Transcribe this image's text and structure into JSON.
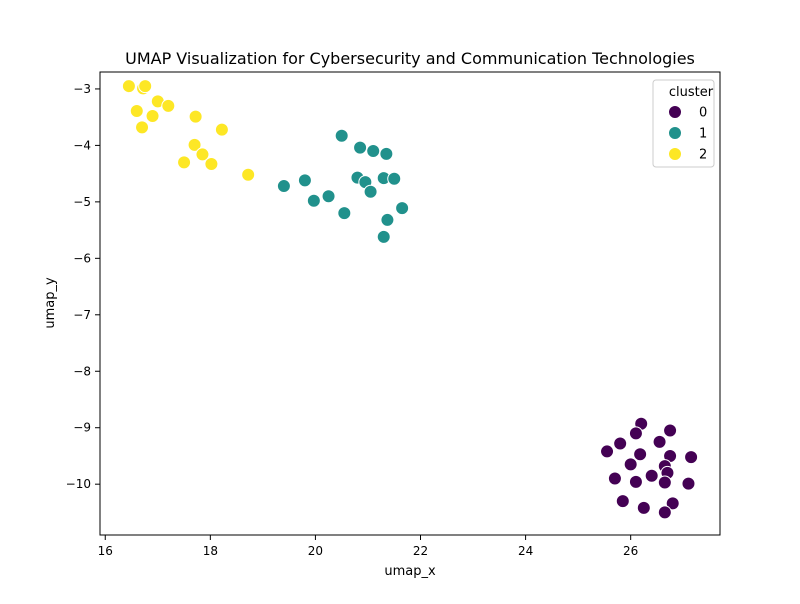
{
  "chart_data": {
    "type": "scatter",
    "title": "UMAP Visualization for Cybersecurity and Communication Technologies",
    "xlabel": "umap_x",
    "ylabel": "umap_y",
    "xlim": [
      15.9,
      27.7
    ],
    "ylim": [
      -10.9,
      -2.7
    ],
    "xticks": [
      16,
      18,
      20,
      22,
      24,
      26
    ],
    "yticks": [
      -3,
      -4,
      -5,
      -6,
      -7,
      -8,
      -9,
      -10
    ],
    "grid": false,
    "legend": {
      "title": "cluster",
      "placement": "top-right",
      "entries": [
        "0",
        "1",
        "2"
      ]
    },
    "series": [
      {
        "name": "0",
        "color": "#440154",
        "points": [
          [
            26.2,
            -8.93
          ],
          [
            26.75,
            -9.05
          ],
          [
            26.1,
            -9.1
          ],
          [
            25.8,
            -9.28
          ],
          [
            26.55,
            -9.25
          ],
          [
            25.55,
            -9.42
          ],
          [
            26.18,
            -9.47
          ],
          [
            26.75,
            -9.5
          ],
          [
            27.15,
            -9.52
          ],
          [
            26.0,
            -9.65
          ],
          [
            26.65,
            -9.68
          ],
          [
            26.7,
            -9.8
          ],
          [
            25.7,
            -9.9
          ],
          [
            26.4,
            -9.85
          ],
          [
            26.1,
            -9.96
          ],
          [
            26.65,
            -9.97
          ],
          [
            27.1,
            -9.99
          ],
          [
            25.85,
            -10.3
          ],
          [
            26.8,
            -10.34
          ],
          [
            26.25,
            -10.42
          ],
          [
            26.65,
            -10.5
          ]
        ]
      },
      {
        "name": "1",
        "color": "#21918c",
        "points": [
          [
            20.5,
            -3.83
          ],
          [
            20.85,
            -4.04
          ],
          [
            21.1,
            -4.1
          ],
          [
            21.35,
            -4.15
          ],
          [
            20.8,
            -4.57
          ],
          [
            20.95,
            -4.65
          ],
          [
            21.3,
            -4.58
          ],
          [
            21.5,
            -4.59
          ],
          [
            19.4,
            -4.72
          ],
          [
            19.8,
            -4.62
          ],
          [
            21.05,
            -4.82
          ],
          [
            20.25,
            -4.9
          ],
          [
            19.97,
            -4.98
          ],
          [
            21.65,
            -5.11
          ],
          [
            20.55,
            -5.2
          ],
          [
            21.37,
            -5.32
          ],
          [
            21.3,
            -5.62
          ]
        ]
      },
      {
        "name": "2",
        "color": "#fde725",
        "points": [
          [
            16.45,
            -2.95
          ],
          [
            16.72,
            -2.99
          ],
          [
            16.76,
            -2.95
          ],
          [
            17.0,
            -3.22
          ],
          [
            17.2,
            -3.3
          ],
          [
            16.6,
            -3.39
          ],
          [
            16.9,
            -3.48
          ],
          [
            17.72,
            -3.49
          ],
          [
            16.7,
            -3.68
          ],
          [
            18.22,
            -3.72
          ],
          [
            17.7,
            -3.99
          ],
          [
            17.85,
            -4.16
          ],
          [
            17.5,
            -4.3
          ],
          [
            18.02,
            -4.33
          ],
          [
            18.72,
            -4.52
          ]
        ]
      }
    ]
  }
}
